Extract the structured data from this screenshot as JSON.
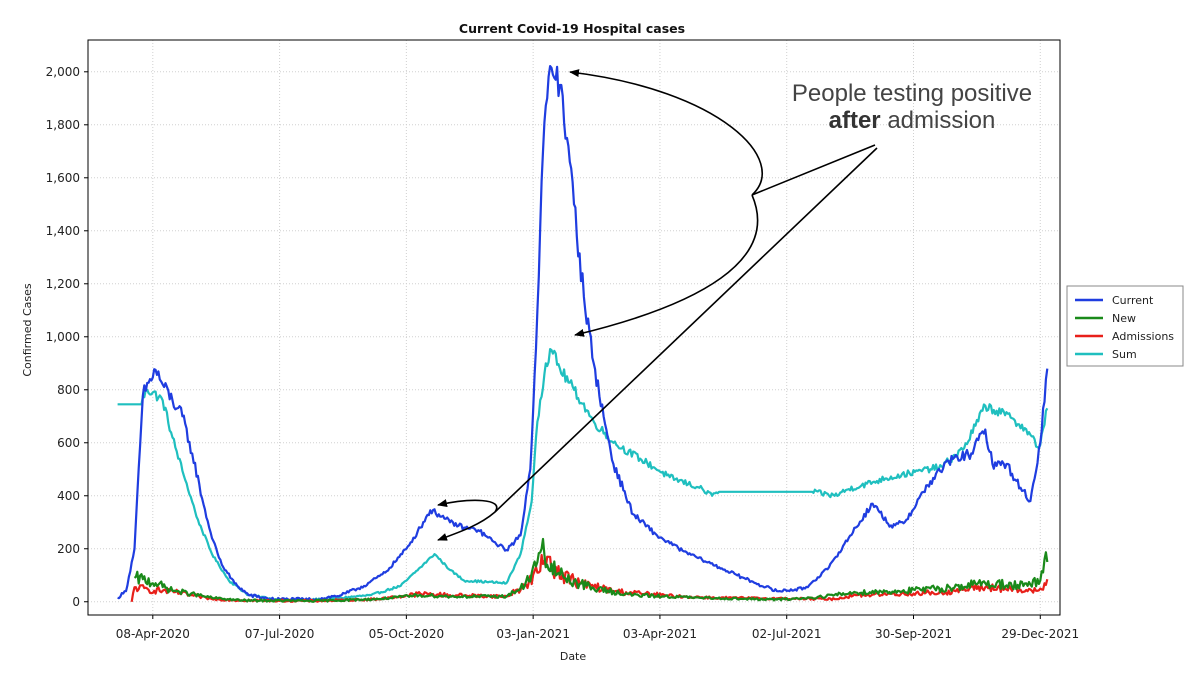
{
  "chart_data": {
    "type": "line",
    "title": "Current Covid-19 Hospital cases",
    "xlabel": "Date",
    "ylabel": "Confirmed Cases",
    "x_ticks": [
      "08-Apr-2020",
      "07-Jul-2020",
      "05-Oct-2020",
      "03-Jan-2021",
      "03-Apr-2021",
      "02-Jul-2021",
      "30-Sep-2021",
      "29-Dec-2021"
    ],
    "y_ticks": [
      "0",
      "200",
      "400",
      "600",
      "800",
      "1,000",
      "1,200",
      "1,400",
      "1,600",
      "1,800",
      "2,000"
    ],
    "ylim": [
      -50,
      2120
    ],
    "xlim": [
      "2020-02-22",
      "2022-01-12"
    ],
    "grid": true,
    "legend_position": "right",
    "annotation": {
      "line1": "People testing positive",
      "line2_bold": "after",
      "line2_rest": " admission"
    },
    "series": [
      {
        "name": "Current",
        "color": "#1f3de0",
        "points": [
          [
            "2020-03-14",
            15
          ],
          [
            "2020-03-20",
            40
          ],
          [
            "2020-03-26",
            200
          ],
          [
            "2020-04-01",
            780
          ],
          [
            "2020-04-06",
            840
          ],
          [
            "2020-04-10",
            875
          ],
          [
            "2020-04-15",
            820
          ],
          [
            "2020-04-22",
            760
          ],
          [
            "2020-04-29",
            700
          ],
          [
            "2020-05-06",
            560
          ],
          [
            "2020-05-13",
            390
          ],
          [
            "2020-05-20",
            240
          ],
          [
            "2020-05-27",
            140
          ],
          [
            "2020-06-05",
            70
          ],
          [
            "2020-06-15",
            25
          ],
          [
            "2020-07-01",
            10
          ],
          [
            "2020-08-01",
            8
          ],
          [
            "2020-08-20",
            25
          ],
          [
            "2020-09-05",
            60
          ],
          [
            "2020-09-20",
            110
          ],
          [
            "2020-10-05",
            200
          ],
          [
            "2020-10-15",
            280
          ],
          [
            "2020-10-22",
            345
          ],
          [
            "2020-10-28",
            330
          ],
          [
            "2020-11-05",
            300
          ],
          [
            "2020-11-15",
            280
          ],
          [
            "2020-11-25",
            270
          ],
          [
            "2020-12-05",
            230
          ],
          [
            "2020-12-15",
            195
          ],
          [
            "2020-12-25",
            250
          ],
          [
            "2021-01-01",
            500
          ],
          [
            "2021-01-06",
            1100
          ],
          [
            "2021-01-10",
            1700
          ],
          [
            "2021-01-13",
            1900
          ],
          [
            "2021-01-16",
            2015
          ],
          [
            "2021-01-19",
            1970
          ],
          [
            "2021-01-23",
            1950
          ],
          [
            "2021-01-27",
            1750
          ],
          [
            "2021-02-01",
            1500
          ],
          [
            "2021-02-08",
            1150
          ],
          [
            "2021-02-15",
            900
          ],
          [
            "2021-02-22",
            700
          ],
          [
            "2021-03-01",
            520
          ],
          [
            "2021-03-15",
            330
          ],
          [
            "2021-04-01",
            250
          ],
          [
            "2021-04-20",
            190
          ],
          [
            "2021-05-15",
            130
          ],
          [
            "2021-06-10",
            70
          ],
          [
            "2021-06-25",
            40
          ],
          [
            "2021-07-15",
            50
          ],
          [
            "2021-08-01",
            130
          ],
          [
            "2021-08-20",
            280
          ],
          [
            "2021-09-01",
            370
          ],
          [
            "2021-09-15",
            280
          ],
          [
            "2021-09-25",
            310
          ],
          [
            "2021-10-10",
            440
          ],
          [
            "2021-10-25",
            530
          ],
          [
            "2021-11-10",
            560
          ],
          [
            "2021-11-20",
            650
          ],
          [
            "2021-11-25",
            520
          ],
          [
            "2021-12-05",
            520
          ],
          [
            "2021-12-15",
            430
          ],
          [
            "2021-12-22",
            380
          ],
          [
            "2021-12-29",
            600
          ],
          [
            "2022-01-03",
            880
          ]
        ]
      },
      {
        "name": "New",
        "color": "#1a8a1a",
        "points": [
          [
            "2020-03-26",
            90
          ],
          [
            "2020-04-01",
            85
          ],
          [
            "2020-04-10",
            70
          ],
          [
            "2020-04-20",
            45
          ],
          [
            "2020-05-05",
            30
          ],
          [
            "2020-05-20",
            15
          ],
          [
            "2020-06-10",
            5
          ],
          [
            "2020-08-01",
            3
          ],
          [
            "2020-09-15",
            10
          ],
          [
            "2020-10-15",
            25
          ],
          [
            "2020-11-05",
            20
          ],
          [
            "2020-12-15",
            20
          ],
          [
            "2020-12-28",
            60
          ],
          [
            "2021-01-06",
            150
          ],
          [
            "2021-01-09",
            200
          ],
          [
            "2021-01-13",
            140
          ],
          [
            "2021-01-25",
            90
          ],
          [
            "2021-02-15",
            50
          ],
          [
            "2021-03-15",
            25
          ],
          [
            "2021-05-01",
            15
          ],
          [
            "2021-06-25",
            8
          ],
          [
            "2021-07-20",
            15
          ],
          [
            "2021-08-20",
            35
          ],
          [
            "2021-09-20",
            40
          ],
          [
            "2021-10-20",
            50
          ],
          [
            "2021-11-20",
            70
          ],
          [
            "2021-12-20",
            60
          ],
          [
            "2021-12-29",
            80
          ],
          [
            "2022-01-01",
            160
          ],
          [
            "2022-01-03",
            150
          ]
        ]
      },
      {
        "name": "Admissions",
        "color": "#e8201a",
        "points": [
          [
            "2020-03-24",
            0
          ],
          [
            "2020-03-26",
            55
          ],
          [
            "2020-04-05",
            45
          ],
          [
            "2020-04-20",
            40
          ],
          [
            "2020-05-05",
            25
          ],
          [
            "2020-05-20",
            10
          ],
          [
            "2020-06-10",
            5
          ],
          [
            "2020-08-01",
            3
          ],
          [
            "2020-09-15",
            10
          ],
          [
            "2020-10-15",
            30
          ],
          [
            "2020-11-05",
            25
          ],
          [
            "2020-12-15",
            20
          ],
          [
            "2020-12-28",
            60
          ],
          [
            "2021-01-06",
            110
          ],
          [
            "2021-01-13",
            170
          ],
          [
            "2021-01-20",
            110
          ],
          [
            "2021-02-05",
            70
          ],
          [
            "2021-03-01",
            40
          ],
          [
            "2021-04-15",
            20
          ],
          [
            "2021-05-15",
            15
          ],
          [
            "2021-08-05",
            10
          ],
          [
            "2021-08-20",
            25
          ],
          [
            "2021-10-20",
            35
          ],
          [
            "2021-11-20",
            55
          ],
          [
            "2021-12-20",
            40
          ],
          [
            "2021-12-29",
            50
          ],
          [
            "2022-01-03",
            85
          ]
        ]
      },
      {
        "name": "Sum",
        "color": "#1fbfbf",
        "points": [
          [
            "2020-03-14",
            745
          ],
          [
            "2020-03-30",
            745
          ],
          [
            "2020-04-04",
            800
          ],
          [
            "2020-04-08",
            790
          ],
          [
            "2020-04-15",
            760
          ],
          [
            "2020-04-22",
            620
          ],
          [
            "2020-05-01",
            460
          ],
          [
            "2020-05-10",
            310
          ],
          [
            "2020-05-20",
            180
          ],
          [
            "2020-06-01",
            80
          ],
          [
            "2020-06-15",
            25
          ],
          [
            "2020-07-10",
            5
          ],
          [
            "2020-08-10",
            10
          ],
          [
            "2020-09-10",
            25
          ],
          [
            "2020-10-01",
            60
          ],
          [
            "2020-10-15",
            130
          ],
          [
            "2020-10-25",
            180
          ],
          [
            "2020-11-05",
            120
          ],
          [
            "2020-11-15",
            80
          ],
          [
            "2020-12-01",
            75
          ],
          [
            "2020-12-15",
            70
          ],
          [
            "2020-12-25",
            180
          ],
          [
            "2021-01-02",
            380
          ],
          [
            "2021-01-06",
            680
          ],
          [
            "2021-01-12",
            900
          ],
          [
            "2021-01-16",
            950
          ],
          [
            "2021-01-22",
            880
          ],
          [
            "2021-02-01",
            800
          ],
          [
            "2021-02-15",
            680
          ],
          [
            "2021-03-01",
            600
          ],
          [
            "2021-03-20",
            540
          ],
          [
            "2021-04-10",
            470
          ],
          [
            "2021-05-01",
            430
          ],
          [
            "2021-05-10",
            400
          ],
          [
            "2021-05-15",
            415
          ],
          [
            "2021-07-20",
            415
          ],
          [
            "2021-08-05",
            400
          ],
          [
            "2021-08-15",
            425
          ],
          [
            "2021-09-10",
            465
          ],
          [
            "2021-10-01",
            490
          ],
          [
            "2021-10-20",
            510
          ],
          [
            "2021-11-05",
            580
          ],
          [
            "2021-11-20",
            740
          ],
          [
            "2021-12-10",
            690
          ],
          [
            "2021-12-22",
            630
          ],
          [
            "2021-12-28",
            580
          ],
          [
            "2022-01-03",
            730
          ]
        ]
      }
    ]
  }
}
